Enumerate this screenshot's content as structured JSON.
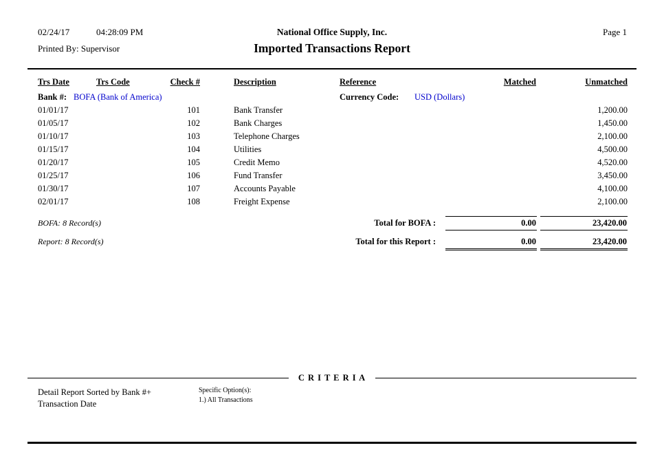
{
  "header": {
    "date": "02/24/17",
    "time": "04:28:09 PM",
    "printed_by": "Printed By: Supervisor",
    "company": "National Office Supply, Inc.",
    "report_title": "Imported Transactions Report",
    "page": "Page 1"
  },
  "table": {
    "columns": {
      "trs_date": "Trs Date",
      "trs_code": "Trs Code",
      "check_no": "Check #",
      "description": "Description",
      "reference": "Reference",
      "matched": "Matched",
      "unmatched": "Unmatched"
    },
    "bank_row": {
      "bank_label": "Bank #:",
      "bank_value": "BOFA (Bank of America)",
      "currency_label": "Currency Code:",
      "currency_value": "USD (Dollars)"
    },
    "rows": [
      {
        "trs_date": "01/01/17",
        "trs_code": "",
        "check_no": "101",
        "description": "Bank Transfer",
        "reference": "",
        "matched": "",
        "unmatched": "1,200.00"
      },
      {
        "trs_date": "01/05/17",
        "trs_code": "",
        "check_no": "102",
        "description": "Bank Charges",
        "reference": "",
        "matched": "",
        "unmatched": "1,450.00"
      },
      {
        "trs_date": "01/10/17",
        "trs_code": "",
        "check_no": "103",
        "description": "Telephone Charges",
        "reference": "",
        "matched": "",
        "unmatched": "2,100.00"
      },
      {
        "trs_date": "01/15/17",
        "trs_code": "",
        "check_no": "104",
        "description": "Utilities",
        "reference": "",
        "matched": "",
        "unmatched": "4,500.00"
      },
      {
        "trs_date": "01/20/17",
        "trs_code": "",
        "check_no": "105",
        "description": "Credit Memo",
        "reference": "",
        "matched": "",
        "unmatched": "4,520.00"
      },
      {
        "trs_date": "01/25/17",
        "trs_code": "",
        "check_no": "106",
        "description": "Fund Transfer",
        "reference": "",
        "matched": "",
        "unmatched": "3,450.00"
      },
      {
        "trs_date": "01/30/17",
        "trs_code": "",
        "check_no": "107",
        "description": "Accounts Payable",
        "reference": "",
        "matched": "",
        "unmatched": "4,100.00"
      },
      {
        "trs_date": "02/01/17",
        "trs_code": "",
        "check_no": "108",
        "description": "Freight Expense",
        "reference": "",
        "matched": "",
        "unmatched": "2,100.00"
      }
    ]
  },
  "totals": {
    "bank_records": "BOFA: 8 Record(s)",
    "bank_total_label": "Total for BOFA :",
    "bank_matched_total": "0.00",
    "bank_unmatched_total": "23,420.00",
    "report_records": "Report: 8 Record(s)",
    "report_total_label": "Total for this Report :",
    "report_matched_total": "0.00",
    "report_unmatched_total": "23,420.00"
  },
  "criteria": {
    "heading": "C R I T E R I A",
    "sort_line1": "Detail Report Sorted by Bank #+",
    "sort_line2": "Transaction Date",
    "options_label": "Specific Option(s):",
    "options_value": "1.) All Transactions"
  },
  "colors": {
    "link_blue": "#0000cc"
  }
}
